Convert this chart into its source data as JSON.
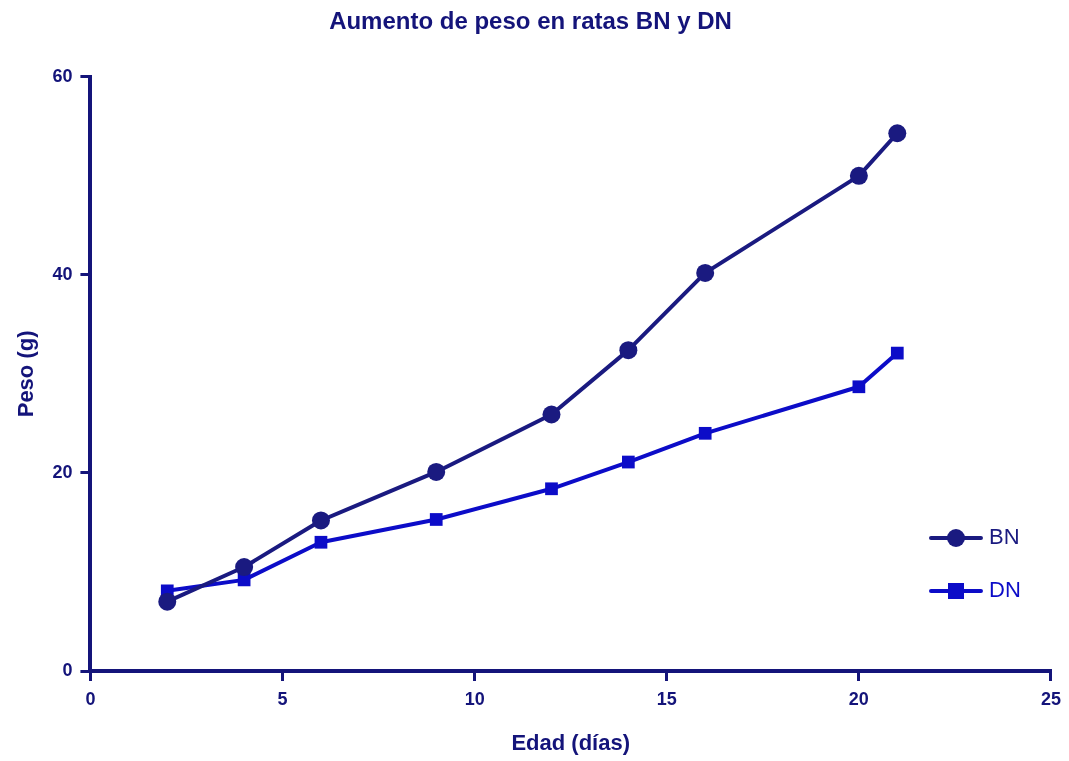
{
  "chart_data": {
    "type": "line",
    "title": "Aumento de peso en ratas BN y DN",
    "xlabel": "Edad (días)",
    "ylabel": "Peso (g)",
    "x": [
      2,
      4,
      6,
      9,
      12,
      14,
      16,
      20,
      21
    ],
    "series": [
      {
        "name": "BN",
        "color": "#1a1a80",
        "marker": "circle",
        "values": [
          7.0,
          10.5,
          15.2,
          20.1,
          25.9,
          32.4,
          40.2,
          50.0,
          54.3
        ]
      },
      {
        "name": "DN",
        "color": "#0c0cc8",
        "marker": "square",
        "values": [
          8.1,
          9.2,
          13.0,
          15.3,
          18.4,
          21.1,
          24.0,
          28.7,
          32.1
        ]
      }
    ],
    "xlim": [
      0,
      25
    ],
    "xticks": [
      0,
      5,
      10,
      15,
      20,
      25
    ],
    "ylim": [
      0,
      60
    ],
    "yticks": [
      0,
      20,
      40,
      60
    ],
    "grid": false,
    "legend": "bottom right",
    "line_style": "solid"
  }
}
